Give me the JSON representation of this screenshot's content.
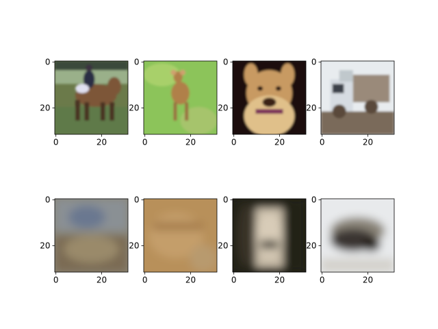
{
  "chart_data": {
    "type": "image-grid",
    "rows": 2,
    "cols": 4,
    "image_size": [
      32,
      32
    ],
    "x_ticks": [
      0,
      20
    ],
    "y_ticks": [
      0,
      20
    ],
    "panels": [
      {
        "row": 0,
        "col": 0,
        "subject": "horse-with-rider",
        "colors": [
          "#6b7a4a",
          "#7d5638",
          "#9ab08a",
          "#2a2e45"
        ]
      },
      {
        "row": 0,
        "col": 1,
        "subject": "deer-in-grass",
        "colors": [
          "#8cc45a",
          "#b08048",
          "#a6c46c",
          "#9a6e40"
        ]
      },
      {
        "row": 0,
        "col": 2,
        "subject": "dog-portrait",
        "colors": [
          "#1a1010",
          "#c89a62",
          "#e0c08a",
          "#7a2e5a"
        ]
      },
      {
        "row": 0,
        "col": 3,
        "subject": "truck",
        "colors": [
          "#d6dce2",
          "#9a8a7a",
          "#5a4a3a",
          "#e8ecef"
        ]
      },
      {
        "row": 1,
        "col": 0,
        "subject": "blurred-reconstruction",
        "colors": [
          "#8a8678",
          "#7a6a52",
          "#6a7890",
          "#9a8a6a"
        ]
      },
      {
        "row": 1,
        "col": 1,
        "subject": "blurred-reconstruction",
        "colors": [
          "#b8905a",
          "#c49e6a",
          "#a88050",
          "#b89a6e"
        ]
      },
      {
        "row": 1,
        "col": 2,
        "subject": "blurred-reconstruction",
        "colors": [
          "#222018",
          "#c8bca8",
          "#5a5448",
          "#383226"
        ]
      },
      {
        "row": 1,
        "col": 3,
        "subject": "blurred-reconstruction",
        "colors": [
          "#e8eaec",
          "#3a3630",
          "#8a8478",
          "#d4d2cc"
        ]
      }
    ]
  }
}
